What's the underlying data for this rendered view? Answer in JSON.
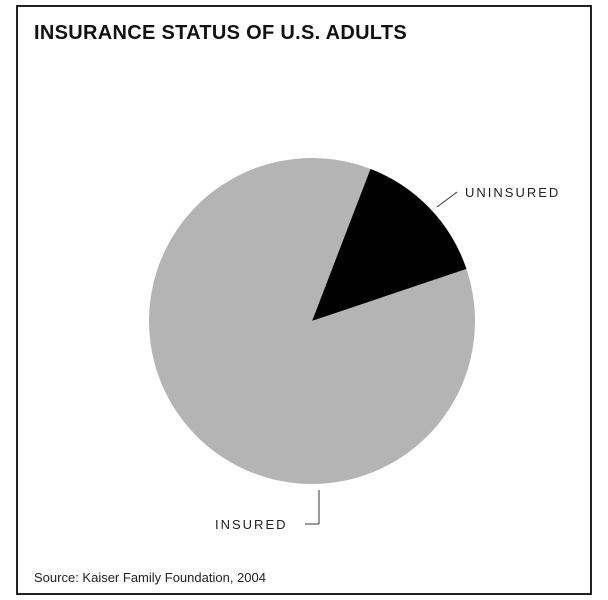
{
  "chart_data": {
    "type": "pie",
    "title": "INSURANCE STATUS OF U.S. ADULTS",
    "source": "Source: Kaiser Family Foundation, 2004",
    "slices": [
      {
        "label": "UNINSURED",
        "value": 14,
        "color": "#000000"
      },
      {
        "label": "INSURED",
        "value": 86,
        "color": "#b4b4b4"
      }
    ]
  }
}
